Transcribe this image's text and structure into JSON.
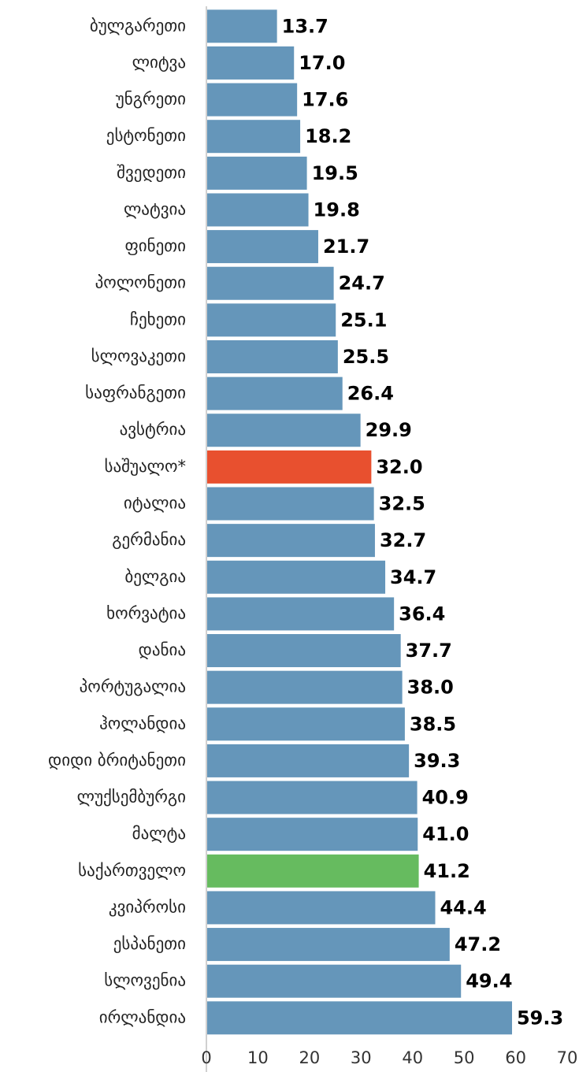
{
  "chart_data": {
    "type": "hbar",
    "categories": [
      "ბულგარეთი",
      "ლიტვა",
      "უნგრეთი",
      "ესტონეთი",
      "შვედეთი",
      "ლატვია",
      "ფინეთი",
      "პოლონეთი",
      "ჩეხეთი",
      "სლოვაკეთი",
      "საფრანგეთი",
      "ავსტრია",
      "საშუალო*",
      "იტალია",
      "გერმანია",
      "ბელგია",
      "ხორვატია",
      "დანია",
      "პორტუგალია",
      "ჰოლანდია",
      "დიდი ბრიტანეთი",
      "ლუქსემბურგი",
      "მალტა",
      "საქართველო",
      "კვიპროსი",
      "ესპანეთი",
      "სლოვენია",
      "ირლანდია"
    ],
    "values": [
      13.7,
      17.0,
      17.6,
      18.2,
      19.5,
      19.8,
      21.7,
      24.7,
      25.1,
      25.5,
      26.4,
      29.9,
      32.0,
      32.5,
      32.7,
      34.7,
      36.4,
      37.7,
      38.0,
      38.5,
      39.3,
      40.9,
      41.0,
      41.2,
      44.4,
      47.2,
      49.4,
      59.3
    ],
    "value_labels": [
      "13.7",
      "17.0",
      "17.6",
      "18.2",
      "19.5",
      "19.8",
      "21.7",
      "24.7",
      "25.1",
      "25.5",
      "26.4",
      "29.9",
      "32.0",
      "32.5",
      "32.7",
      "34.7",
      "36.4",
      "37.7",
      "38.0",
      "38.5",
      "39.3",
      "40.9",
      "41.0",
      "41.2",
      "44.4",
      "47.2",
      "49.4",
      "59.3"
    ],
    "colors": [
      "#6596ba",
      "#6596ba",
      "#6596ba",
      "#6596ba",
      "#6596ba",
      "#6596ba",
      "#6596ba",
      "#6596ba",
      "#6596ba",
      "#6596ba",
      "#6596ba",
      "#6596ba",
      "#e8502f",
      "#6596ba",
      "#6596ba",
      "#6596ba",
      "#6596ba",
      "#6596ba",
      "#6596ba",
      "#6596ba",
      "#6596ba",
      "#6596ba",
      "#6596ba",
      "#66bb5f",
      "#6596ba",
      "#6596ba",
      "#6596ba",
      "#6596ba"
    ],
    "xlim": [
      0,
      70
    ],
    "xticks": [
      0,
      10,
      20,
      30,
      40,
      50,
      60,
      70
    ]
  }
}
